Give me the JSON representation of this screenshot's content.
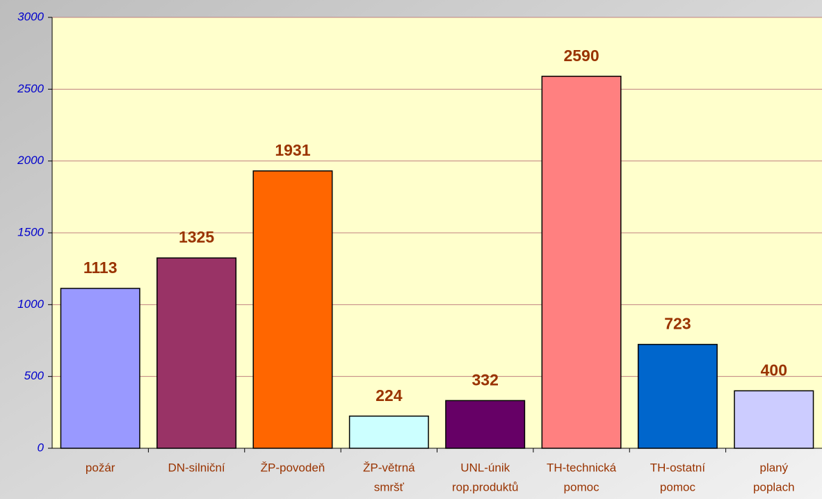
{
  "chart_data": {
    "type": "bar",
    "categories": [
      [
        "požár"
      ],
      [
        "DN-silniční"
      ],
      [
        "ŽP-povodeň"
      ],
      [
        "ŽP-větrná",
        "smršť"
      ],
      [
        "UNL-únik",
        "rop.produktů"
      ],
      [
        "TH-technická",
        "pomoc"
      ],
      [
        "TH-ostatní",
        "pomoc"
      ],
      [
        "planý",
        "poplach"
      ]
    ],
    "values": [
      1113,
      1325,
      1931,
      224,
      332,
      2590,
      723,
      400
    ],
    "colors": [
      "#9999FF",
      "#993366",
      "#FF6600",
      "#CCFFFF",
      "#660066",
      "#FF8080",
      "#0066CC",
      "#CCCCFF"
    ],
    "ylim": [
      0,
      3000
    ],
    "yticks": [
      0,
      500,
      1000,
      1500,
      2000,
      2500,
      3000
    ],
    "grid": true
  }
}
